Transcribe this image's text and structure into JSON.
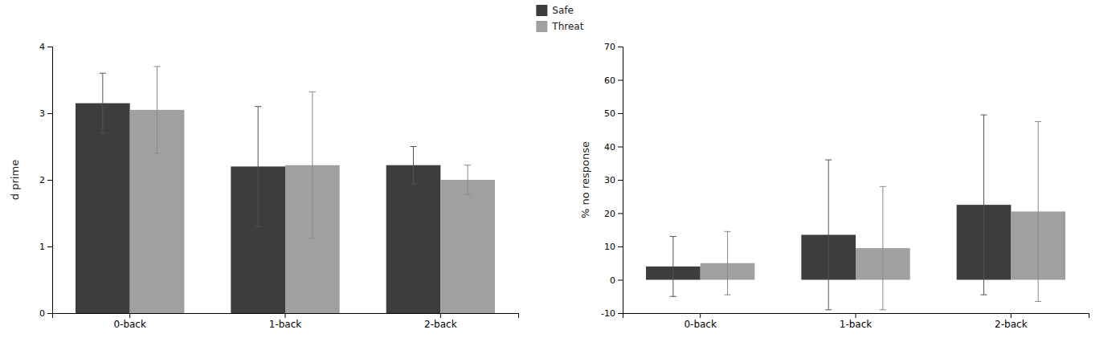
{
  "chart_data": [
    {
      "type": "bar",
      "categories": [
        "0-back",
        "1-back",
        "2-back"
      ],
      "series": [
        {
          "name": "Safe",
          "color": "#3d3d3d",
          "values": [
            3.15,
            2.2,
            2.22
          ],
          "errors": [
            0.45,
            0.9,
            0.28
          ]
        },
        {
          "name": "Threat",
          "color": "#a0a0a0",
          "values": [
            3.05,
            2.22,
            2.0
          ],
          "errors": [
            0.65,
            1.1,
            0.22
          ]
        }
      ],
      "ylabel": "d prime",
      "ylim": [
        0,
        4
      ],
      "yticks": [
        0,
        1,
        2,
        3,
        4
      ],
      "grid": false,
      "legend": "top"
    },
    {
      "type": "bar",
      "categories": [
        "0-back",
        "1-back",
        "2-back"
      ],
      "series": [
        {
          "color": "#3d3d3d",
          "values": [
            4.0,
            13.5,
            22.5
          ],
          "errors": [
            9.0,
            22.5,
            27.0
          ]
        },
        {
          "color": "#a0a0a0",
          "values": [
            5.0,
            9.5,
            20.5
          ],
          "errors": [
            9.5,
            18.5,
            27.0
          ]
        }
      ],
      "ylabel": "% no response",
      "ylim": [
        -10,
        70
      ],
      "yticks": [
        -10,
        0,
        10,
        20,
        30,
        40,
        50,
        60,
        70
      ],
      "grid": false
    }
  ]
}
